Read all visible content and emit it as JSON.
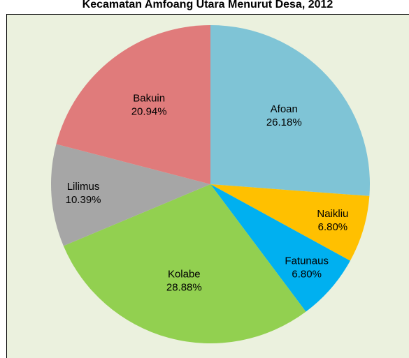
{
  "chart_data": {
    "type": "pie",
    "title": "Kecamatan Amfoang Utara Menurut Desa, 2012",
    "categories": [
      "Afoan",
      "Naikliu",
      "Fatunaus",
      "Kolabe",
      "Lilimus",
      "Bakuin"
    ],
    "values": [
      26.18,
      6.8,
      6.8,
      28.88,
      10.39,
      20.94
    ],
    "value_labels": [
      "26.18%",
      "6.80%",
      "6.80%",
      "28.88%",
      "10.39%",
      "20.94%"
    ],
    "colors": [
      "#7fc4d6",
      "#ffc000",
      "#00b0f0",
      "#92d050",
      "#a6a6a6",
      "#e07b7b"
    ]
  }
}
